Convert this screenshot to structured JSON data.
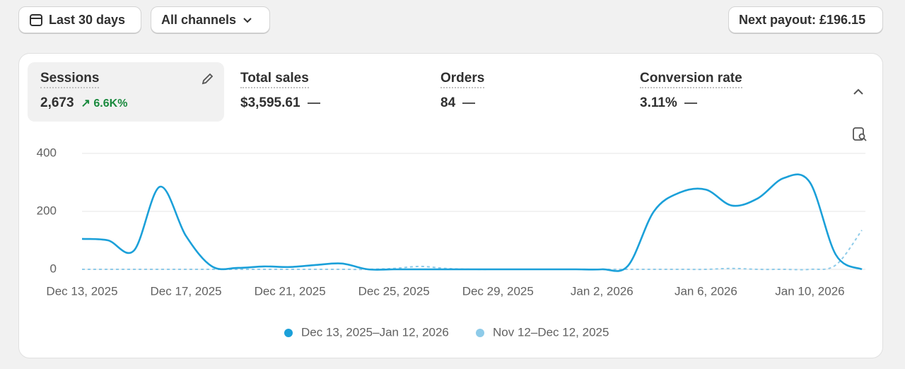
{
  "toolbar": {
    "date_range": "Last 30 days",
    "channel": "All channels",
    "payout": "Next payout: £196.15"
  },
  "metrics": [
    {
      "label": "Sessions",
      "value": "2,673",
      "change": "6.6K%"
    },
    {
      "label": "Total sales",
      "value": "$3,595.61"
    },
    {
      "label": "Orders",
      "value": "84"
    },
    {
      "label": "Conversion rate",
      "value": "3.11%"
    }
  ],
  "chart_data": {
    "type": "line",
    "categories": [
      "Dec 13, 2025",
      null,
      null,
      null,
      "Dec 17, 2025",
      null,
      null,
      null,
      "Dec 21, 2025",
      null,
      null,
      null,
      "Dec 25, 2025",
      null,
      null,
      null,
      "Dec 29, 2025",
      null,
      null,
      null,
      "Jan 2, 2026",
      null,
      null,
      null,
      "Jan 6, 2026",
      null,
      null,
      null,
      "Jan 10, 2026",
      null,
      null
    ],
    "series": [
      {
        "name": "Dec 13, 2025–Jan 12, 2026",
        "color": "#1ba0d9",
        "dashed": false,
        "values": [
          105,
          100,
          65,
          285,
          115,
          10,
          5,
          10,
          8,
          15,
          20,
          0,
          0,
          0,
          0,
          0,
          0,
          0,
          0,
          0,
          0,
          12,
          200,
          265,
          275,
          220,
          245,
          315,
          300,
          50,
          0
        ]
      },
      {
        "name": "Nov 12–Dec 12, 2025",
        "color": "#8ecbe9",
        "dashed": true,
        "values": [
          0,
          0,
          0,
          0,
          0,
          0,
          0,
          0,
          0,
          0,
          0,
          0,
          3,
          10,
          3,
          0,
          0,
          0,
          0,
          0,
          0,
          0,
          0,
          0,
          0,
          3,
          0,
          0,
          0,
          15,
          135
        ]
      }
    ],
    "ylim": [
      0,
      400
    ],
    "yticks": [
      0,
      200,
      400
    ],
    "grid": true
  }
}
